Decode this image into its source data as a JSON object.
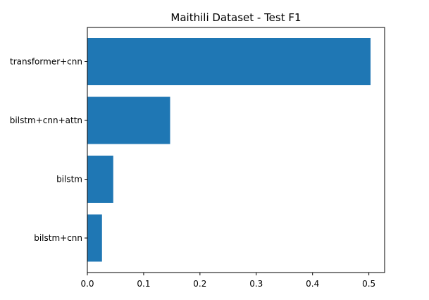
{
  "chart_data": {
    "type": "bar",
    "orientation": "horizontal",
    "title": "Maithili Dataset - Test F1",
    "xlabel": "",
    "ylabel": "",
    "categories": [
      "transformer+cnn",
      "bilstm+cnn+attn",
      "bilstm",
      "bilstm+cnn"
    ],
    "values": [
      0.503,
      0.147,
      0.046,
      0.026
    ],
    "xlim": [
      0,
      0.528
    ],
    "xticks": [
      0.0,
      0.1,
      0.2,
      0.3,
      0.4,
      0.5
    ],
    "xtick_labels": [
      "0.0",
      "0.1",
      "0.2",
      "0.3",
      "0.4",
      "0.5"
    ],
    "grid": false,
    "legend": "none",
    "colors": {
      "bar": "#1f77b4",
      "axes": "#000000",
      "background": "#ffffff"
    }
  }
}
